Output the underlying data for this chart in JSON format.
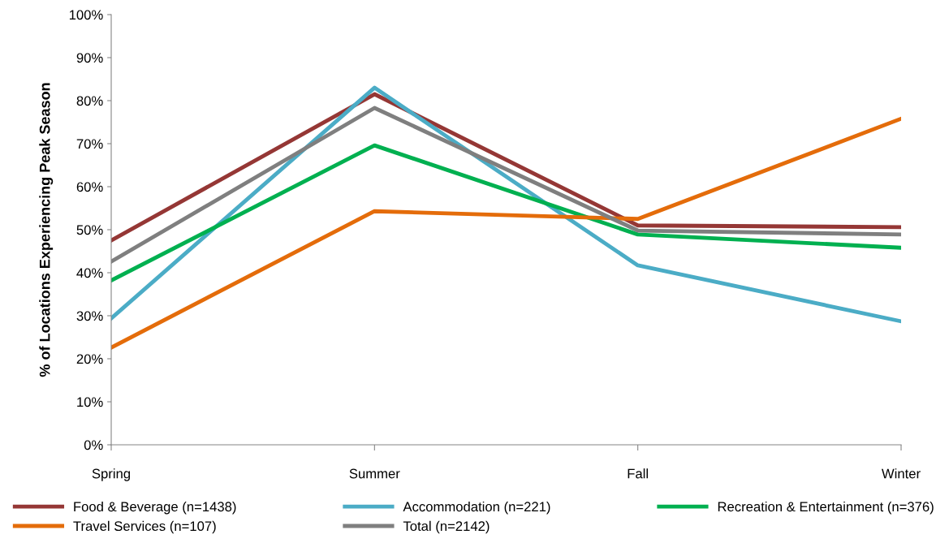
{
  "chart_data": {
    "type": "line",
    "ylabel": "% of Locations Experiencing Peak Season",
    "categories": [
      "Spring",
      "Summer",
      "Fall",
      "Winter"
    ],
    "series": [
      {
        "name": "Food & Beverage (n=1438)",
        "color": "#953735",
        "values": [
          47.5,
          81.5,
          51,
          50.6
        ]
      },
      {
        "name": "Accommodation (n=221)",
        "color": "#4bacc6",
        "values": [
          29.4,
          83,
          41.7,
          28.7
        ]
      },
      {
        "name": "Recreation & Entertainment (n=376)",
        "color": "#00b050",
        "values": [
          38.2,
          69.6,
          48.9,
          45.8
        ]
      },
      {
        "name": "Travel Services (n=107)",
        "color": "#e46c0a",
        "values": [
          22.6,
          54.3,
          52.5,
          75.8
        ]
      },
      {
        "name": "Total (n=2142)",
        "color": "#7f7f7f",
        "values": [
          42.6,
          78.3,
          49.8,
          48.9
        ]
      }
    ],
    "ylim": [
      0,
      100
    ],
    "yticks": [
      {
        "value": 0,
        "label": "0%"
      },
      {
        "value": 10,
        "label": "10%"
      },
      {
        "value": 20,
        "label": "20%"
      },
      {
        "value": 30,
        "label": "30%"
      },
      {
        "value": 40,
        "label": "40%"
      },
      {
        "value": 50,
        "label": "50%"
      },
      {
        "value": 60,
        "label": "60%"
      },
      {
        "value": 70,
        "label": "70%"
      },
      {
        "value": 80,
        "label": "80%"
      },
      {
        "value": 90,
        "label": "90%"
      },
      {
        "value": 100,
        "label": "100%"
      }
    ],
    "grid": false,
    "legend": "bottom",
    "marker": "none",
    "line_style": "solid"
  }
}
